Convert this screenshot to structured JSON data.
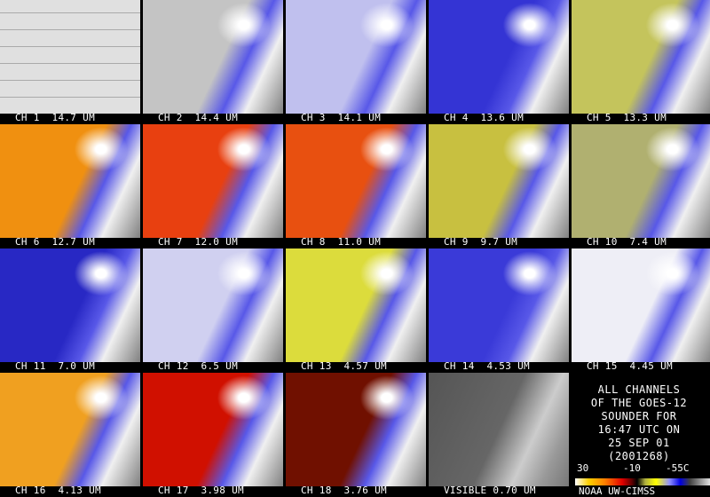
{
  "panels": [
    {
      "label": "CH 1  14.7 UM"
    },
    {
      "label": "CH 2  14.4 UM"
    },
    {
      "label": "CH 3  14.1 UM"
    },
    {
      "label": "CH 4  13.6 UM"
    },
    {
      "label": "CH 5  13.3 UM"
    },
    {
      "label": "CH 6  12.7 UM"
    },
    {
      "label": "CH 7  12.0 UM"
    },
    {
      "label": "CH 8  11.0 UM"
    },
    {
      "label": "CH 9  9.7 UM"
    },
    {
      "label": "CH 10  7.4 UM"
    },
    {
      "label": "CH 11  7.0 UM"
    },
    {
      "label": "CH 12  6.5 UM"
    },
    {
      "label": "CH 13  4.57 UM"
    },
    {
      "label": "CH 14  4.53 UM"
    },
    {
      "label": "CH 15  4.45 UM"
    },
    {
      "label": "CH 16  4.13 UM"
    },
    {
      "label": "CH 17  3.98 UM"
    },
    {
      "label": "CH 18  3.76 UM"
    },
    {
      "label": "VISIBLE 0.70 UM"
    }
  ],
  "info": {
    "lines": [
      "ALL CHANNELS",
      "OF THE GOES-12",
      "SOUNDER FOR",
      "16:47 UTC ON",
      "25 SEP 01",
      "(2001268)"
    ],
    "scale_labels": [
      "30",
      "-10",
      "-55C"
    ],
    "credit": "NOAA UW-CIMSS"
  }
}
